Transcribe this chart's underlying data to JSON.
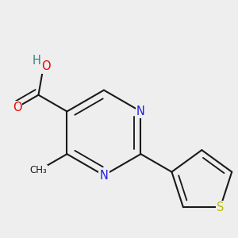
{
  "background_color": "#eeeeee",
  "bond_color": "#1a1a1a",
  "atom_colors": {
    "N": "#2020dd",
    "O": "#ee0000",
    "S": "#bbbb00",
    "H": "#3a8080"
  },
  "bond_width": 1.5,
  "font_size": 10.5
}
